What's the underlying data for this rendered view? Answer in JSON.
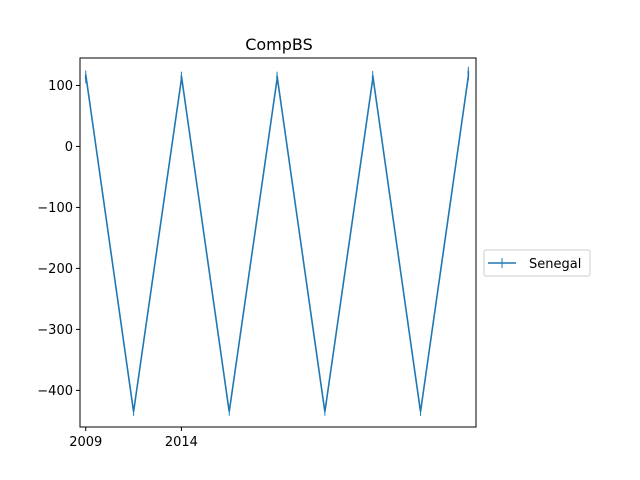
{
  "chart_data": {
    "type": "line",
    "title": "CompBS",
    "xlabel": "",
    "ylabel": "",
    "x_ticks": [
      "2009",
      "2014"
    ],
    "y_ticks": [
      100,
      0,
      -100,
      -200,
      -300,
      -400
    ],
    "xlim": [
      2008.7,
      2029.4
    ],
    "ylim": [
      -460,
      145
    ],
    "legend": {
      "placement": "right-outside",
      "entries": [
        "Senegal"
      ]
    },
    "series": [
      {
        "name": "Senegal",
        "color": "#1f77b4",
        "marker": "vline",
        "points": [
          [
            2009,
            110
          ],
          [
            2009,
            118
          ],
          [
            2011.5,
            -435
          ],
          [
            2014,
            110
          ],
          [
            2014,
            116
          ],
          [
            2016.5,
            -435
          ],
          [
            2019,
            110
          ],
          [
            2019,
            116
          ],
          [
            2021.5,
            -435
          ],
          [
            2024,
            110
          ],
          [
            2024,
            117
          ],
          [
            2026.5,
            -435
          ],
          [
            2029,
            115
          ],
          [
            2029,
            124
          ]
        ]
      }
    ]
  }
}
